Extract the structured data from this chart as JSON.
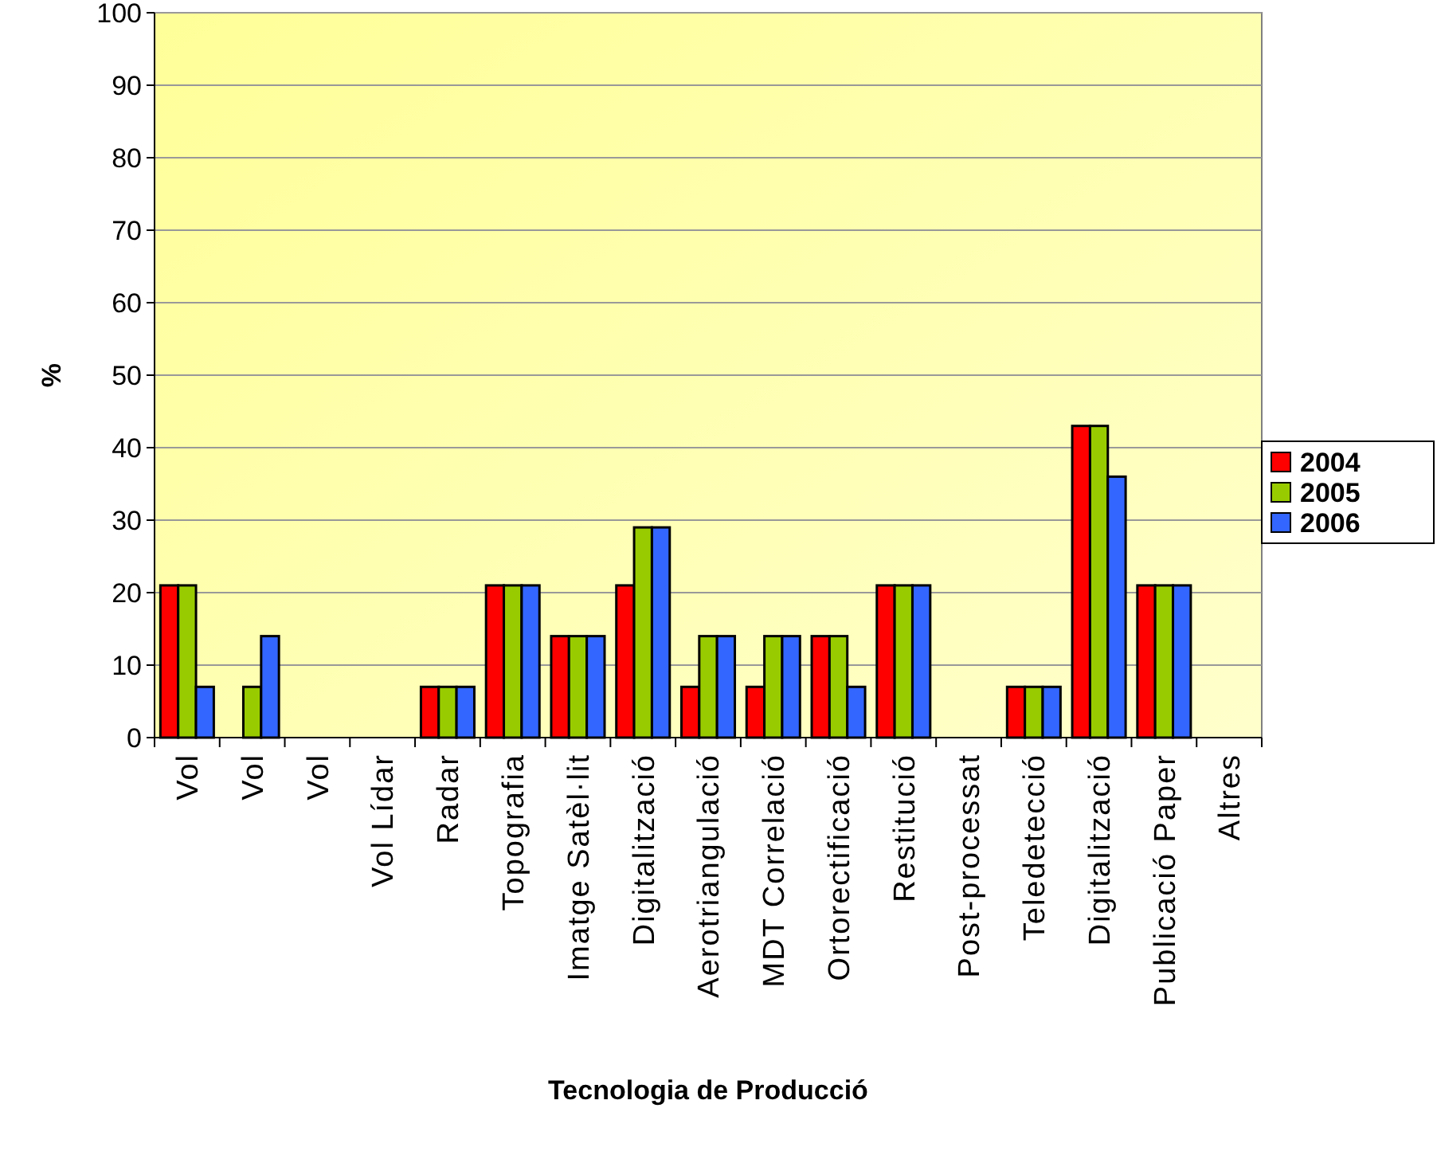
{
  "chart_data": {
    "type": "bar",
    "xlabel": "Tecnologia de Producció",
    "ylabel": "%",
    "categories": [
      "Vol",
      "Vol",
      "Vol",
      "Vol Lídar",
      "Radar",
      "Topografia",
      "Imatge Satèl·lit",
      "Digitalització",
      "Aerotriangulació",
      "MDT Correlació",
      "Ortorectificació",
      "Restitució",
      "Post-processat",
      "Teledetecció",
      "Digitalització",
      "Publicació Paper",
      "Altres"
    ],
    "series": [
      {
        "name": "2004",
        "color": "#ff0000",
        "values": [
          21,
          0,
          0,
          0,
          7,
          21,
          14,
          21,
          7,
          7,
          14,
          21,
          0,
          7,
          43,
          21,
          0
        ]
      },
      {
        "name": "2005",
        "color": "#99cc00",
        "values": [
          21,
          7,
          0,
          0,
          7,
          21,
          14,
          29,
          14,
          14,
          14,
          21,
          0,
          7,
          43,
          21,
          0
        ]
      },
      {
        "name": "2006",
        "color": "#3366ff",
        "values": [
          7,
          14,
          0,
          0,
          7,
          21,
          14,
          29,
          14,
          14,
          7,
          21,
          0,
          7,
          36,
          21,
          0
        ]
      }
    ],
    "ylim": [
      0,
      100
    ],
    "yticks": [
      0,
      10,
      20,
      30,
      40,
      50,
      60,
      70,
      80,
      90,
      100
    ],
    "grid": "y",
    "legend": "right"
  }
}
